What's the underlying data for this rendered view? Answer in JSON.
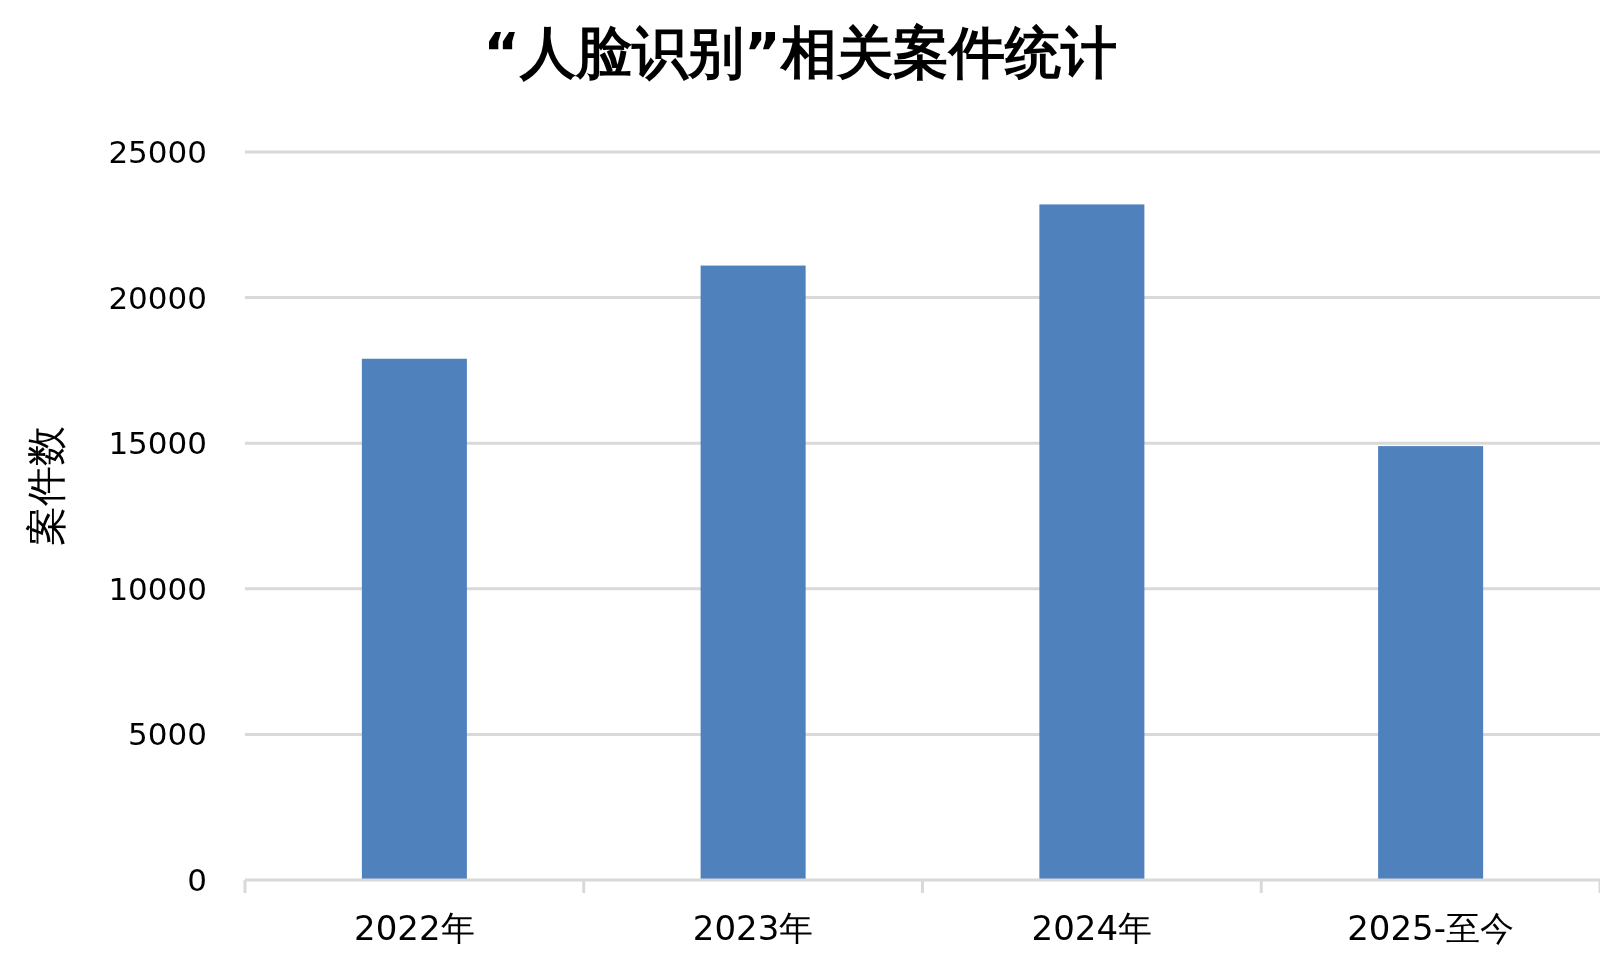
{
  "chart_data": {
    "type": "bar",
    "title": "“人脸识别”相关案件统计",
    "ylabel": "案件数",
    "categories": [
      "2022年",
      "2023年",
      "2024年",
      "2025-至今"
    ],
    "values": [
      17900,
      21100,
      23200,
      14900
    ],
    "color": "#4f81bd",
    "ylim": [
      0,
      25000
    ],
    "yticks": [
      0,
      5000,
      10000,
      15000,
      20000,
      25000
    ],
    "grid": "y"
  }
}
